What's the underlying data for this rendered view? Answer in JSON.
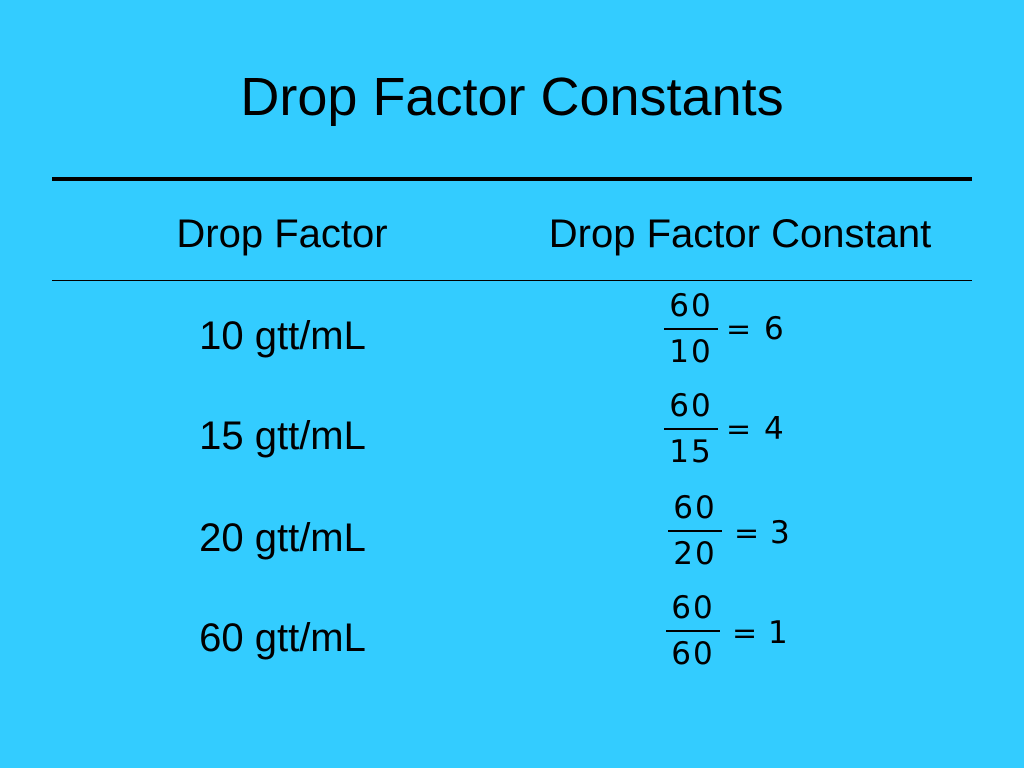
{
  "title": "Drop Factor Constants",
  "headers": {
    "drop_factor": "Drop Factor",
    "drop_factor_constant": "Drop Factor Constant"
  },
  "equals_sign": "=",
  "rows": [
    {
      "factor": "10 gtt/mL",
      "numerator": "60",
      "denominator": "10",
      "result": "6"
    },
    {
      "factor": "15 gtt/mL",
      "numerator": "60",
      "denominator": "15",
      "result": "4"
    },
    {
      "factor": "20 gtt/mL",
      "numerator": "60",
      "denominator": "20",
      "result": "3"
    },
    {
      "factor": "60 gtt/mL",
      "numerator": "60",
      "denominator": "60",
      "result": "1"
    }
  ],
  "colors": {
    "background": "#33CCFF",
    "text": "#000000"
  }
}
